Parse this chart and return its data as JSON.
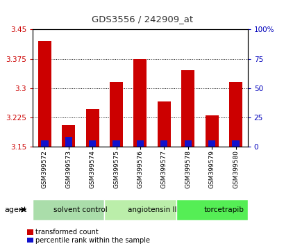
{
  "title": "GDS3556 / 242909_at",
  "samples": [
    "GSM399572",
    "GSM399573",
    "GSM399574",
    "GSM399575",
    "GSM399576",
    "GSM399577",
    "GSM399578",
    "GSM399579",
    "GSM399580"
  ],
  "transformed_counts": [
    3.42,
    3.205,
    3.245,
    3.315,
    3.375,
    3.265,
    3.345,
    3.23,
    3.315
  ],
  "percentile_ranks": [
    5,
    8,
    5,
    5,
    5,
    5,
    5,
    5,
    5
  ],
  "ymin": 3.15,
  "ymax": 3.45,
  "y_ticks": [
    3.15,
    3.225,
    3.3,
    3.375,
    3.45
  ],
  "right_yticks": [
    0,
    25,
    50,
    75,
    100
  ],
  "bar_color": "#cc0000",
  "blue_color": "#1111cc",
  "agent_groups": [
    {
      "label": "solvent control",
      "start": 0,
      "end": 3,
      "color": "#aaddaa"
    },
    {
      "label": "angiotensin II",
      "start": 3,
      "end": 6,
      "color": "#bbeeaa"
    },
    {
      "label": "torcetrapib",
      "start": 6,
      "end": 9,
      "color": "#55ee55"
    }
  ],
  "agent_label": "agent",
  "legend_items": [
    {
      "label": "transformed count",
      "color": "#cc0000"
    },
    {
      "label": "percentile rank within the sample",
      "color": "#1111cc"
    }
  ],
  "left_tick_color": "#cc0000",
  "right_tick_color": "#0000bb",
  "bar_width": 0.55,
  "blue_bar_width": 0.3,
  "grid_color": "#000000",
  "background_color": "#ffffff",
  "label_bg_color": "#cccccc",
  "agent_row_bg": "#ffffff"
}
